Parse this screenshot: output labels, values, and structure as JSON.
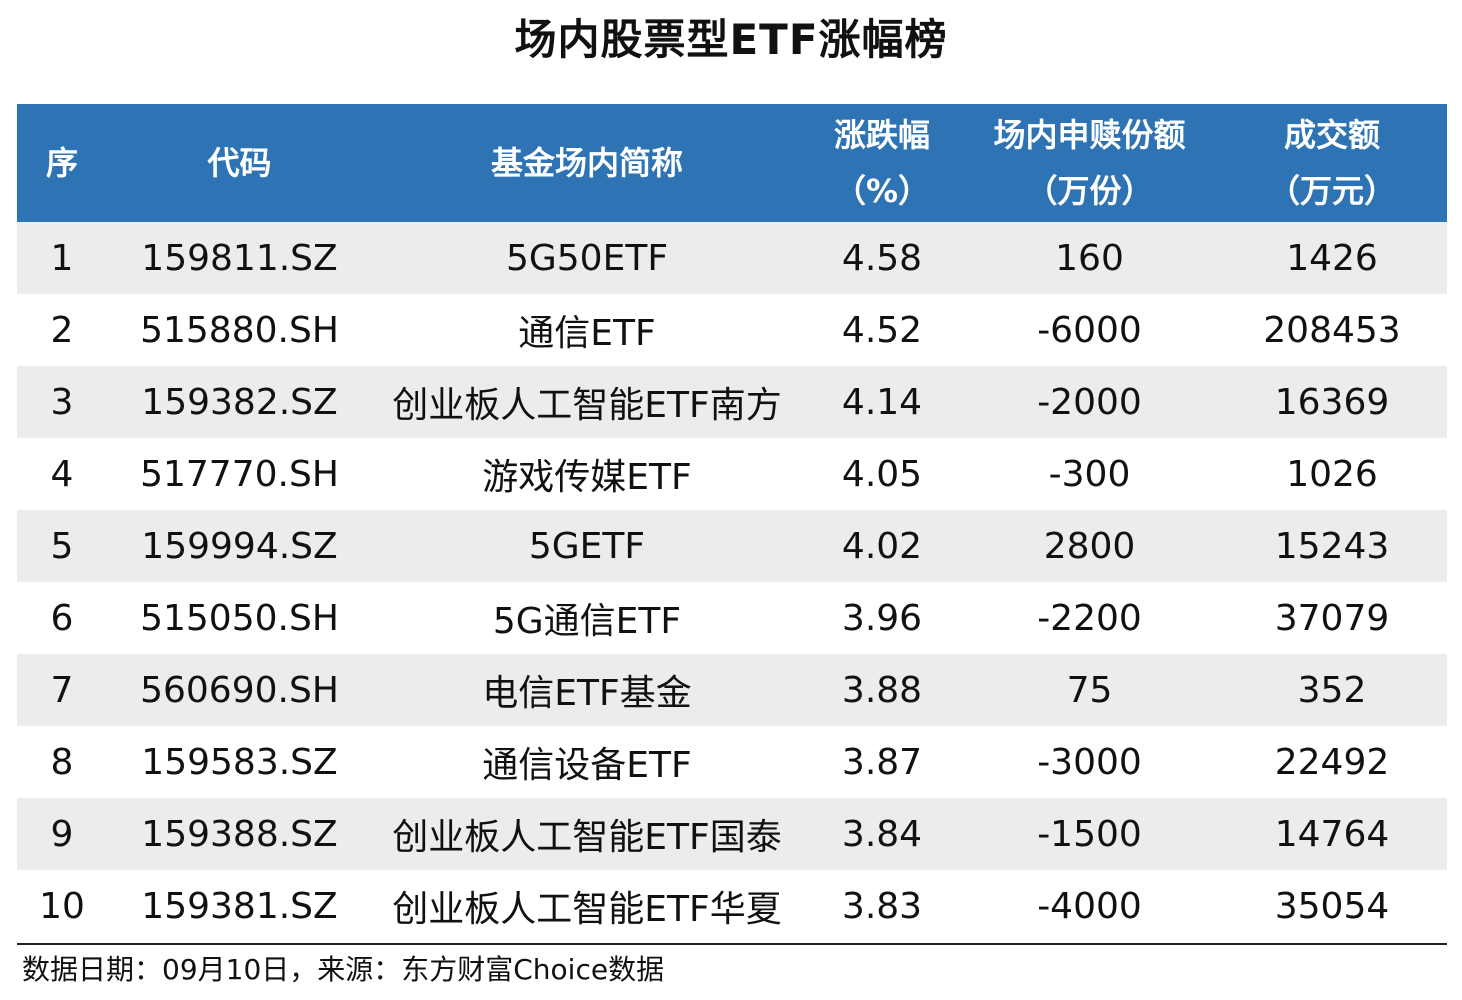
{
  "title": "场内股票型ETF涨幅榜",
  "header": {
    "col0": "序",
    "col1": "代码",
    "col2": "基金场内简称",
    "col3_line1": "涨跌幅",
    "col3_line2": "（%）",
    "col4_line1": "场内申赎份额",
    "col4_line2": "（万份）",
    "col5_line1": "成交额",
    "col5_line2": "（万元）"
  },
  "rows": [
    {
      "rank": "1",
      "code": "159811.SZ",
      "name": "5G50ETF",
      "change": "4.58",
      "net_sub": "160",
      "turnover": "1426"
    },
    {
      "rank": "2",
      "code": "515880.SH",
      "name": "通信ETF",
      "change": "4.52",
      "net_sub": "-6000",
      "turnover": "208453"
    },
    {
      "rank": "3",
      "code": "159382.SZ",
      "name": "创业板人工智能ETF南方",
      "change": "4.14",
      "net_sub": "-2000",
      "turnover": "16369"
    },
    {
      "rank": "4",
      "code": "517770.SH",
      "name": "游戏传媒ETF",
      "change": "4.05",
      "net_sub": "-300",
      "turnover": "1026"
    },
    {
      "rank": "5",
      "code": "159994.SZ",
      "name": "5GETF",
      "change": "4.02",
      "net_sub": "2800",
      "turnover": "15243"
    },
    {
      "rank": "6",
      "code": "515050.SH",
      "name": "5G通信ETF",
      "change": "3.96",
      "net_sub": "-2200",
      "turnover": "37079"
    },
    {
      "rank": "7",
      "code": "560690.SH",
      "name": "电信ETF基金",
      "change": "3.88",
      "net_sub": "75",
      "turnover": "352"
    },
    {
      "rank": "8",
      "code": "159583.SZ",
      "name": "通信设备ETF",
      "change": "3.87",
      "net_sub": "-3000",
      "turnover": "22492"
    },
    {
      "rank": "9",
      "code": "159388.SZ",
      "name": "创业板人工智能ETF国泰",
      "change": "3.84",
      "net_sub": "-1500",
      "turnover": "14764"
    },
    {
      "rank": "10",
      "code": "159381.SZ",
      "name": "创业板人工智能ETF华夏",
      "change": "3.83",
      "net_sub": "-4000",
      "turnover": "35054"
    }
  ],
  "footer": "数据日期：09月10日，来源：东方财富Choice数据",
  "colors": {
    "header_bg": "#2e74b5",
    "header_text": "#ffffff",
    "stripe_bg": "#ececec"
  }
}
